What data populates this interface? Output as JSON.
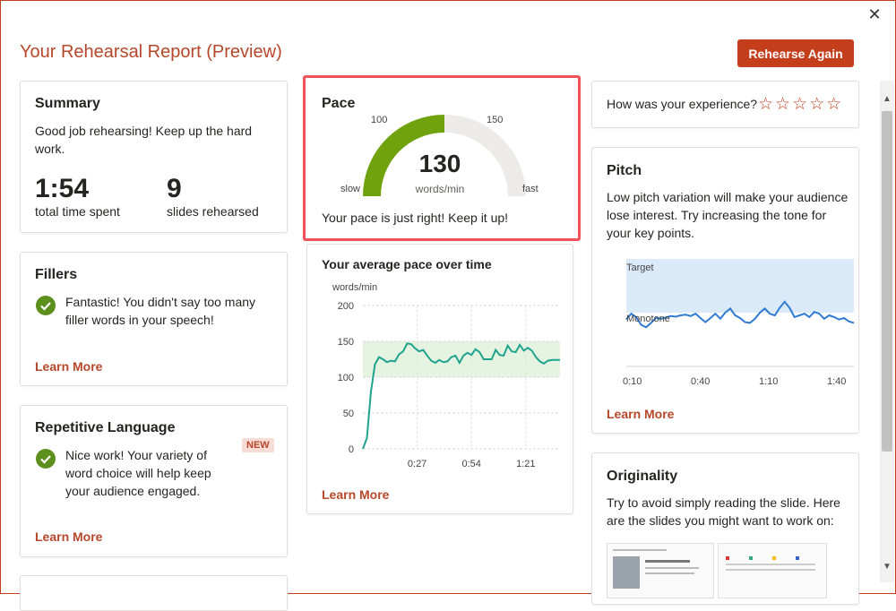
{
  "header": {
    "title": "Your Rehearsal Report (Preview)",
    "action_label": "Rehearse Again",
    "close_glyph": "✕"
  },
  "summary": {
    "heading": "Summary",
    "message": "Good job rehearsing! Keep up the hard work.",
    "time_value": "1:54",
    "time_label": "total time spent",
    "slides_value": "9",
    "slides_label": "slides rehearsed"
  },
  "fillers": {
    "heading": "Fillers",
    "message": "Fantastic! You didn't say too many filler words in your speech!",
    "link": "Learn More"
  },
  "repetitive": {
    "heading": "Repetitive Language",
    "badge": "NEW",
    "message": "Nice work! Your variety of word choice will help keep your audience engaged.",
    "link": "Learn More"
  },
  "pace": {
    "heading": "Pace",
    "value": "130",
    "unit": "words/min",
    "label_100": "100",
    "label_150": "150",
    "label_slow": "slow",
    "label_fast": "fast",
    "message": "Your pace is just right! Keep it up!",
    "gauge_fraction": 0.5
  },
  "pace_chart": {
    "heading": "Your average pace over time",
    "link": "Learn More"
  },
  "experience": {
    "prompt": "How was your experience?",
    "stars": "☆☆☆☆☆",
    "rating": 0
  },
  "pitch": {
    "heading": "Pitch",
    "message": "Low pitch variation will make your audience lose interest. Try increasing the tone for your key points.",
    "link": "Learn More",
    "target_label": "Target",
    "monotone_label": "Monotone",
    "x_ticks": [
      "0:10",
      "0:40",
      "1:10",
      "1:40"
    ]
  },
  "originality": {
    "heading": "Originality",
    "message": "Try to avoid simply reading the slide. Here are the slides you might want to work on:"
  },
  "chart_data": [
    {
      "type": "line",
      "ylabel": "words/min",
      "ylim": [
        0,
        200
      ],
      "yticks": [
        0,
        50,
        100,
        150,
        200
      ],
      "xticks": [
        "0:27",
        "0:54",
        "1:21"
      ],
      "target_band": [
        100,
        150
      ],
      "grid": true,
      "x": [
        0,
        2,
        4,
        6,
        8,
        10,
        12,
        14,
        16,
        18,
        20,
        22,
        24,
        26,
        28,
        30,
        32,
        34,
        36,
        38,
        40,
        42,
        44,
        46,
        48,
        50,
        52,
        54,
        56,
        58,
        60,
        62,
        64,
        66,
        68,
        70,
        72,
        74,
        76,
        78,
        80,
        82,
        84,
        86,
        88,
        90,
        92,
        94,
        96,
        98
      ],
      "series": [
        {
          "values": [
            0,
            15,
            80,
            118,
            128,
            125,
            121,
            123,
            122,
            132,
            136,
            147,
            146,
            140,
            136,
            138,
            130,
            123,
            120,
            124,
            121,
            122,
            128,
            130,
            120,
            130,
            134,
            131,
            139,
            135,
            125,
            125,
            125,
            138,
            131,
            130,
            144,
            136,
            135,
            145,
            137,
            141,
            137,
            128,
            122,
            119,
            123,
            124,
            124,
            124
          ]
        }
      ]
    },
    {
      "type": "line",
      "xticks": [
        "0:10",
        "0:40",
        "1:10",
        "1:40"
      ],
      "series": [
        {
          "values": [
            0.38,
            0.55,
            0.45,
            0.22,
            0.15,
            0.28,
            0.42,
            0.4,
            0.44,
            0.48,
            0.46,
            0.5,
            0.52,
            0.48,
            0.55,
            0.42,
            0.3,
            0.42,
            0.55,
            0.4,
            0.58,
            0.7,
            0.5,
            0.42,
            0.3,
            0.28,
            0.4,
            0.58,
            0.7,
            0.55,
            0.5,
            0.72,
            0.9,
            0.72,
            0.45,
            0.5,
            0.55,
            0.45,
            0.6,
            0.55,
            0.4,
            0.5,
            0.45,
            0.38,
            0.42,
            0.32,
            0.28
          ]
        }
      ]
    }
  ]
}
